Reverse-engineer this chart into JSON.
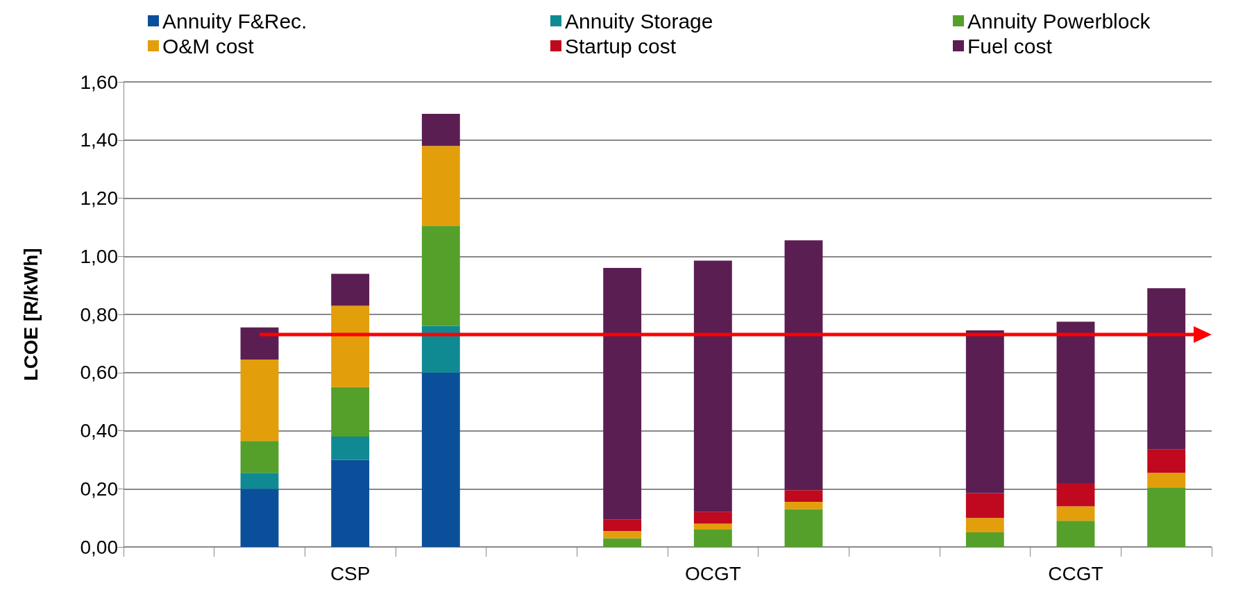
{
  "chart_data": {
    "type": "bar",
    "stacked": true,
    "ylabel": "LCOE [R/kWh]",
    "categories": [
      null,
      null,
      "CSP",
      null,
      null,
      null,
      "OCGT",
      null,
      null,
      null,
      "CCGT",
      null
    ],
    "series": [
      {
        "name": "Annuity F&Rec.",
        "color": "#0a4f9a",
        "values": [
          null,
          0.2,
          0.3,
          0.6,
          null,
          0,
          0,
          0,
          null,
          0,
          0,
          0
        ]
      },
      {
        "name": "Annuity Storage",
        "color": "#0f8a93",
        "values": [
          null,
          0.055,
          0.08,
          0.16,
          null,
          0,
          0,
          0,
          null,
          0,
          0,
          0
        ]
      },
      {
        "name": "Annuity Powerblock",
        "color": "#55a02a",
        "values": [
          null,
          0.11,
          0.17,
          0.345,
          null,
          0.03,
          0.06,
          0.13,
          null,
          0.05,
          0.09,
          0.205
        ]
      },
      {
        "name": "O&M cost",
        "color": "#e39e0c",
        "values": [
          null,
          0.28,
          0.28,
          0.275,
          null,
          0.025,
          0.02,
          0.025,
          null,
          0.05,
          0.05,
          0.05
        ]
      },
      {
        "name": "Startup cost",
        "color": "#c0091e",
        "values": [
          null,
          0,
          0,
          0,
          null,
          0.04,
          0.04,
          0.04,
          null,
          0.085,
          0.08,
          0.08
        ]
      },
      {
        "name": "Fuel cost",
        "color": "#5b1e52",
        "values": [
          null,
          0.11,
          0.11,
          0.11,
          null,
          0.865,
          0.865,
          0.86,
          null,
          0.56,
          0.555,
          0.555
        ]
      }
    ],
    "ylim": [
      0,
      1.6
    ],
    "yticks": [
      {
        "value": 0,
        "label": "0,00"
      },
      {
        "value": 0.2,
        "label": "0,20"
      },
      {
        "value": 0.4,
        "label": "0,40"
      },
      {
        "value": 0.6,
        "label": "0,60"
      },
      {
        "value": 0.8,
        "label": "0,80"
      },
      {
        "value": 1.0,
        "label": "1,00"
      },
      {
        "value": 1.2,
        "label": "1,20"
      },
      {
        "value": 1.4,
        "label": "1,40"
      },
      {
        "value": 1.6,
        "label": "1,60"
      }
    ],
    "ref_lines": [
      {
        "axis": "y",
        "value": 0.73,
        "color": "#ff0000"
      }
    ],
    "grid": "y",
    "legend": "top"
  }
}
